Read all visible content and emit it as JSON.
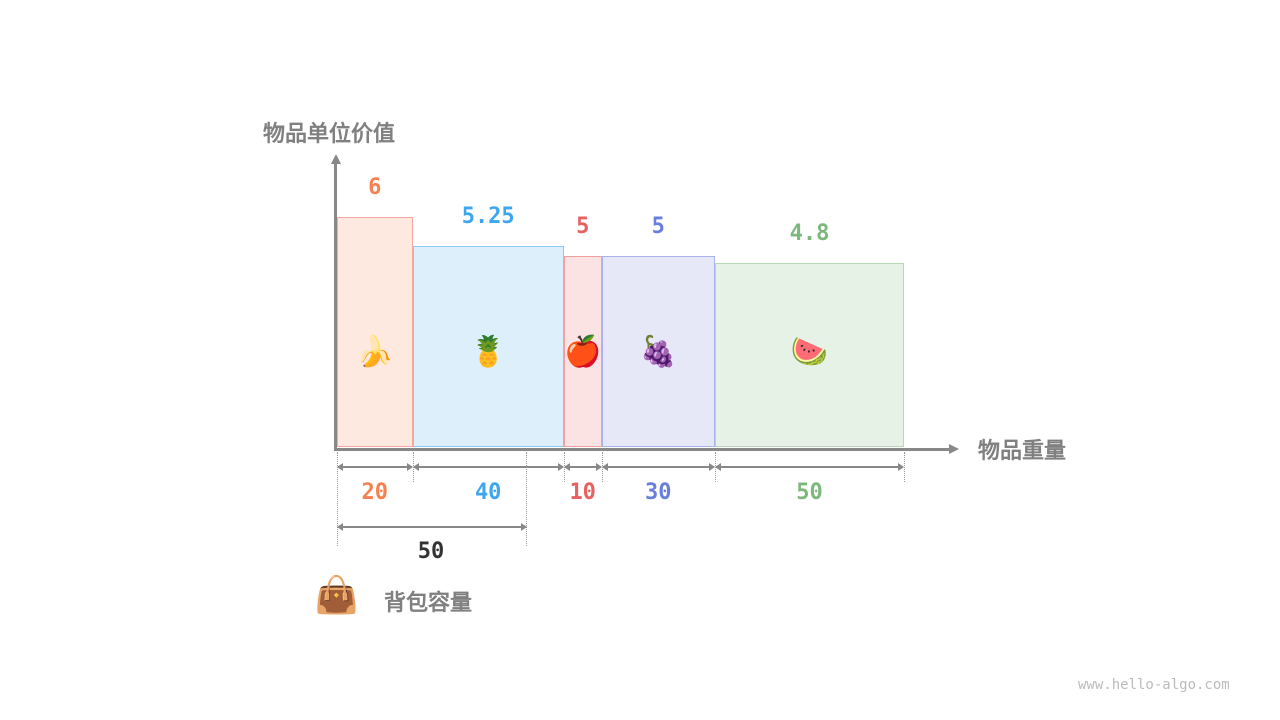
{
  "y_axis_title": "物品单位价值",
  "x_axis_title": "物品重量",
  "items": [
    {
      "name": "banana",
      "icon": "🍌",
      "unit_value": "6",
      "weight": "20",
      "color": "#f6804f",
      "fill": "#fee9e0",
      "border": "#f4a9a0"
    },
    {
      "name": "pineapple",
      "icon": "🍍",
      "unit_value": "5.25",
      "weight": "40",
      "color": "#3ea6ef",
      "fill": "#ddeffa",
      "border": "#8cc8f0"
    },
    {
      "name": "apple",
      "icon": "🍎",
      "unit_value": "5",
      "weight": "10",
      "color": "#e8615f",
      "fill": "#fbe3e3",
      "border": "#f2a0a0"
    },
    {
      "name": "grapes",
      "icon": "🍇",
      "unit_value": "5",
      "weight": "30",
      "color": "#6a7fdb",
      "fill": "#e6e8f8",
      "border": "#a8b2ec"
    },
    {
      "name": "watermelon",
      "icon": "🍉",
      "unit_value": "4.8",
      "weight": "50",
      "color": "#7cb87c",
      "fill": "#e6f2e6",
      "border": "#b6d8b6"
    }
  ],
  "capacity": {
    "value": "50",
    "label": "背包容量",
    "icon": "👜",
    "color": "#333333"
  },
  "watermark": "www.hello-algo.com"
}
